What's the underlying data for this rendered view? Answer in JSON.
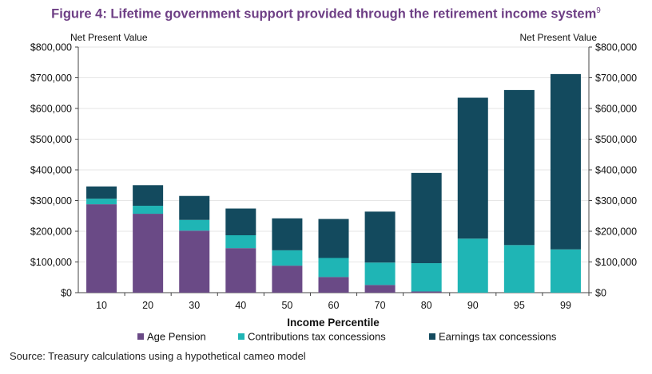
{
  "chart_data": {
    "type": "bar",
    "stacked": true,
    "title": "Figure 4: Lifetime government support provided through the retirement income system",
    "title_footnote": "9",
    "xlabel": "Income Percentile",
    "ylabel_left": "Net Present Value",
    "ylabel_right": "Net Present Value",
    "ylim": [
      0,
      800000
    ],
    "yticks": [
      "$0",
      "$100,000",
      "$200,000",
      "$300,000",
      "$400,000",
      "$500,000",
      "$600,000",
      "$700,000",
      "$800,000"
    ],
    "categories": [
      "10",
      "20",
      "30",
      "40",
      "50",
      "60",
      "70",
      "80",
      "90",
      "95",
      "99"
    ],
    "series": [
      {
        "name": "Age Pension",
        "color": "#6a4a86",
        "values": [
          288000,
          257000,
          202000,
          145000,
          88000,
          51000,
          25000,
          4000,
          0,
          0,
          0
        ]
      },
      {
        "name": "Contributions tax concessions",
        "color": "#1fb5b5",
        "values": [
          18000,
          26000,
          35000,
          42000,
          50000,
          62000,
          73000,
          92000,
          176000,
          155000,
          141000
        ]
      },
      {
        "name": "Earnings tax concessions",
        "color": "#134a5e",
        "values": [
          40000,
          67000,
          78000,
          87000,
          104000,
          127000,
          166000,
          294000,
          459000,
          505000,
          571000
        ]
      }
    ],
    "legend_position": "bottom"
  },
  "source": "Source: Treasury calculations using a hypothetical cameo model"
}
